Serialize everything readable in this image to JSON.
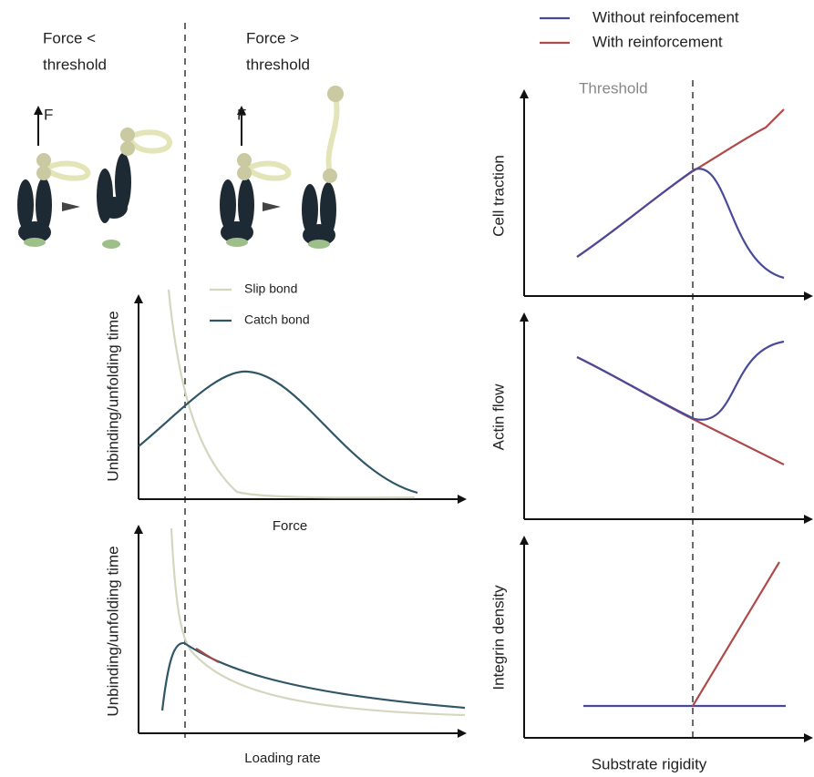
{
  "schematic": {
    "below": [
      "Force <",
      "threshold"
    ],
    "above": [
      "Force >",
      "threshold"
    ],
    "force": "F"
  },
  "left_top": {
    "y_label": "Unbinding/unfolding time",
    "x_label": "Force",
    "legend": [
      "Slip bond",
      "Catch bond"
    ]
  },
  "left_bottom": {
    "y_label": "Unbinding/unfolding time",
    "x_label": "Loading rate"
  },
  "right": {
    "legend": [
      "Without reinfocement",
      "With reinforcement"
    ],
    "threshold": "Threshold",
    "y_labels": [
      "Cell traction",
      "Actin flow",
      "Integrin density"
    ],
    "x_label": "Substrate rigidity"
  }
}
